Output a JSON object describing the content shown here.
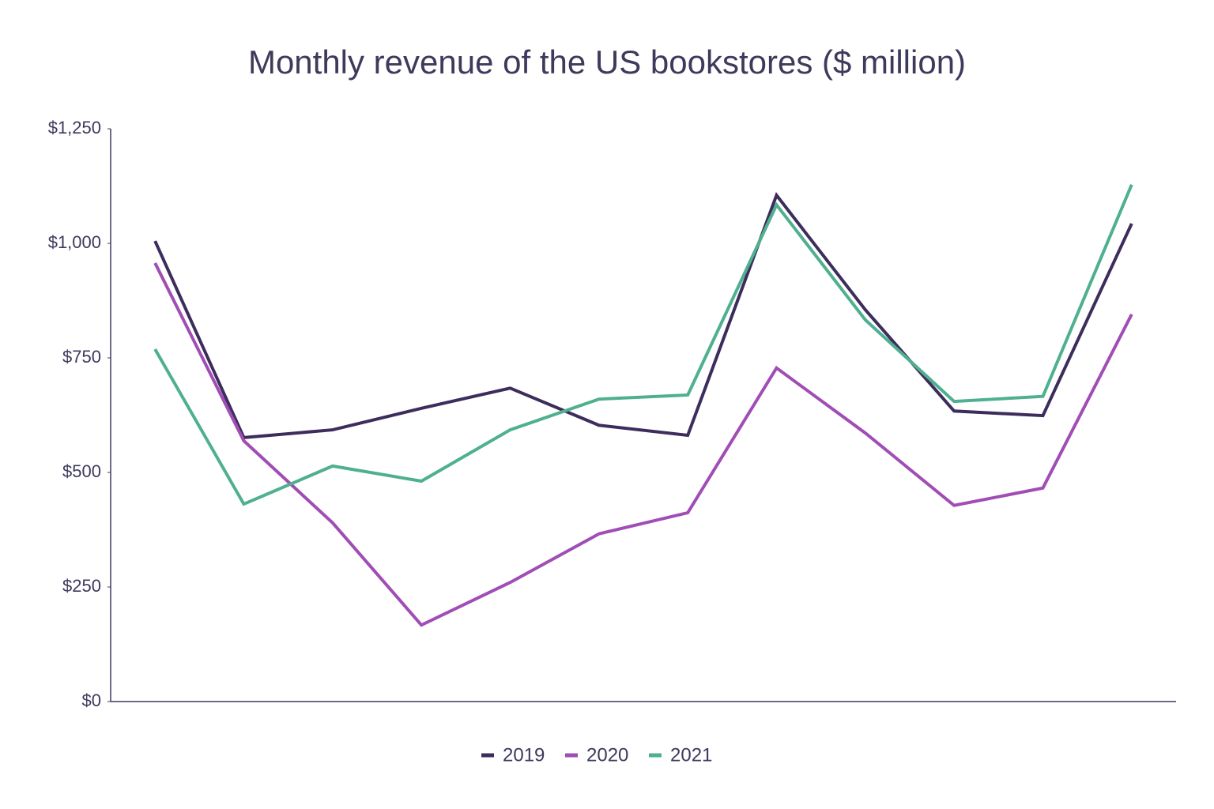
{
  "chart_data": {
    "type": "line",
    "title": "Monthly revenue of the US bookstores ($ million)",
    "categories": [
      null,
      null,
      null,
      null,
      null,
      null,
      null,
      null,
      null,
      null,
      null,
      null
    ],
    "series": [
      {
        "name": "2019",
        "color": "#3d2d5c",
        "values": [
          1005,
          576,
          593,
          640,
          684,
          603,
          581,
          1105,
          855,
          634,
          624,
          1043
        ]
      },
      {
        "name": "2020",
        "color": "#a04db5",
        "values": [
          957,
          569,
          390,
          167,
          260,
          366,
          412,
          728,
          586,
          428,
          466,
          845
        ]
      },
      {
        "name": "2021",
        "color": "#4fb08f",
        "values": [
          769,
          431,
          514,
          481,
          593,
          660,
          669,
          1084,
          833,
          655,
          666,
          1128
        ]
      }
    ],
    "ylim": [
      0,
      1250
    ],
    "yticks": [
      {
        "value": 0,
        "label": "$0"
      },
      {
        "value": 250,
        "label": "$250"
      },
      {
        "value": 500,
        "label": "$500"
      },
      {
        "value": 750,
        "label": "$750"
      },
      {
        "value": 1000,
        "label": "$1,000"
      },
      {
        "value": 1250,
        "label": "$1,250"
      }
    ],
    "grid": false,
    "legend": "bottom"
  }
}
